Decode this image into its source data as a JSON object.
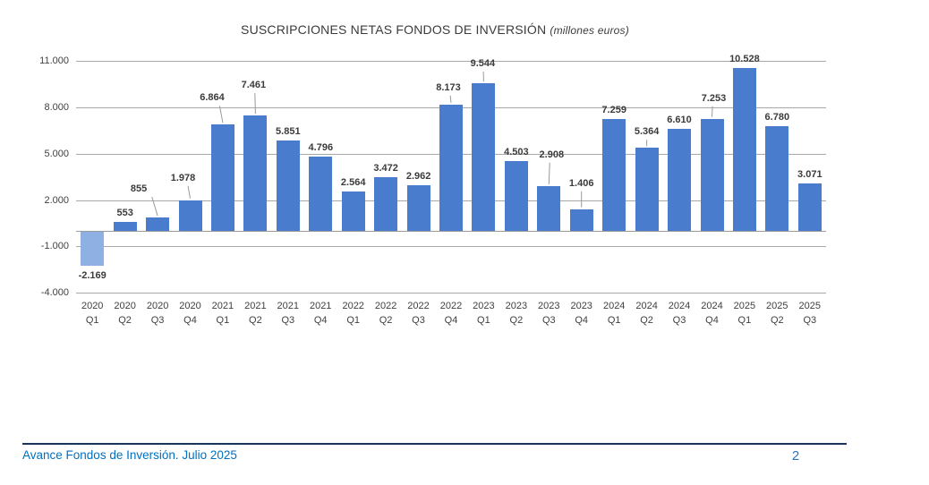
{
  "chart_data": {
    "type": "bar",
    "title": "SUSCRIPCIONES NETAS FONDOS DE INVERSIÓN",
    "title_unit": "(millones euros)",
    "xlabel": "",
    "ylabel": "",
    "ylim": [
      -4000,
      11000
    ],
    "ytick_interval": 3000,
    "grid": true,
    "legend": false,
    "colors": {
      "bar": "#4a7cce",
      "bar_negative": "#8fb0e2",
      "gridline": "#a8a8a8",
      "value_label": "#3b3b3b",
      "leader_line": "#999999"
    },
    "yticks": [
      {
        "value": 11000,
        "label": "11.000"
      },
      {
        "value": 8000,
        "label": "8.000"
      },
      {
        "value": 5000,
        "label": "5.000"
      },
      {
        "value": 2000,
        "label": "2.000"
      },
      {
        "value": -1000,
        "label": "-1.000"
      },
      {
        "value": -4000,
        "label": "-4.000"
      }
    ],
    "points": [
      {
        "year": "2020",
        "quarter": "Q1",
        "value": -2169,
        "label": "-2.169"
      },
      {
        "year": "2020",
        "quarter": "Q2",
        "value": 553,
        "label": "553"
      },
      {
        "year": "2020",
        "quarter": "Q3",
        "value": 855,
        "label": "855",
        "dx": -21,
        "gap": 25,
        "leader": true
      },
      {
        "year": "2020",
        "quarter": "Q4",
        "value": 1978,
        "label": "1.978",
        "dx": -8,
        "gap": 18,
        "leader": true
      },
      {
        "year": "2021",
        "quarter": "Q1",
        "value": 6864,
        "label": "6.864",
        "dx": -12,
        "gap": 23,
        "leader": true
      },
      {
        "year": "2021",
        "quarter": "Q2",
        "value": 7461,
        "label": "7.461",
        "dx": -2,
        "gap": 27,
        "leader": true
      },
      {
        "year": "2021",
        "quarter": "Q3",
        "value": 5851,
        "label": "5.851"
      },
      {
        "year": "2021",
        "quarter": "Q4",
        "value": 4796,
        "label": "4.796"
      },
      {
        "year": "2022",
        "quarter": "Q1",
        "value": 2564,
        "label": "2.564"
      },
      {
        "year": "2022",
        "quarter": "Q2",
        "value": 3472,
        "label": "3.472"
      },
      {
        "year": "2022",
        "quarter": "Q3",
        "value": 2962,
        "label": "2.962"
      },
      {
        "year": "2022",
        "quarter": "Q4",
        "value": 8173,
        "label": "8.173",
        "dx": -3,
        "gap": 12,
        "leader": true
      },
      {
        "year": "2023",
        "quarter": "Q1",
        "value": 9544,
        "label": "9.544",
        "dx": -1,
        "gap": 15,
        "leader": true
      },
      {
        "year": "2023",
        "quarter": "Q2",
        "value": 4503,
        "label": "4.503"
      },
      {
        "year": "2023",
        "quarter": "Q3",
        "value": 2908,
        "label": "2.908",
        "dx": 3,
        "gap": 28,
        "leader": true
      },
      {
        "year": "2023",
        "quarter": "Q4",
        "value": 1406,
        "label": "1.406",
        "dx": 0,
        "gap": 22,
        "leader": true
      },
      {
        "year": "2024",
        "quarter": "Q1",
        "value": 7259,
        "label": "7.259"
      },
      {
        "year": "2024",
        "quarter": "Q2",
        "value": 5364,
        "label": "5.364",
        "dx": 0,
        "gap": 11,
        "leader": true
      },
      {
        "year": "2024",
        "quarter": "Q3",
        "value": 6610,
        "label": "6.610"
      },
      {
        "year": "2024",
        "quarter": "Q4",
        "value": 7253,
        "label": "7.253",
        "dx": 2,
        "gap": 16,
        "leader": true
      },
      {
        "year": "2025",
        "quarter": "Q1",
        "value": 10528,
        "label": "10.528"
      },
      {
        "year": "2025",
        "quarter": "Q2",
        "value": 6780,
        "label": "6.780"
      },
      {
        "year": "2025",
        "quarter": "Q3",
        "value": 3071,
        "label": "3.071"
      }
    ]
  },
  "footer": {
    "text": "Avance Fondos de Inversión. Julio 2025",
    "page": "2"
  }
}
